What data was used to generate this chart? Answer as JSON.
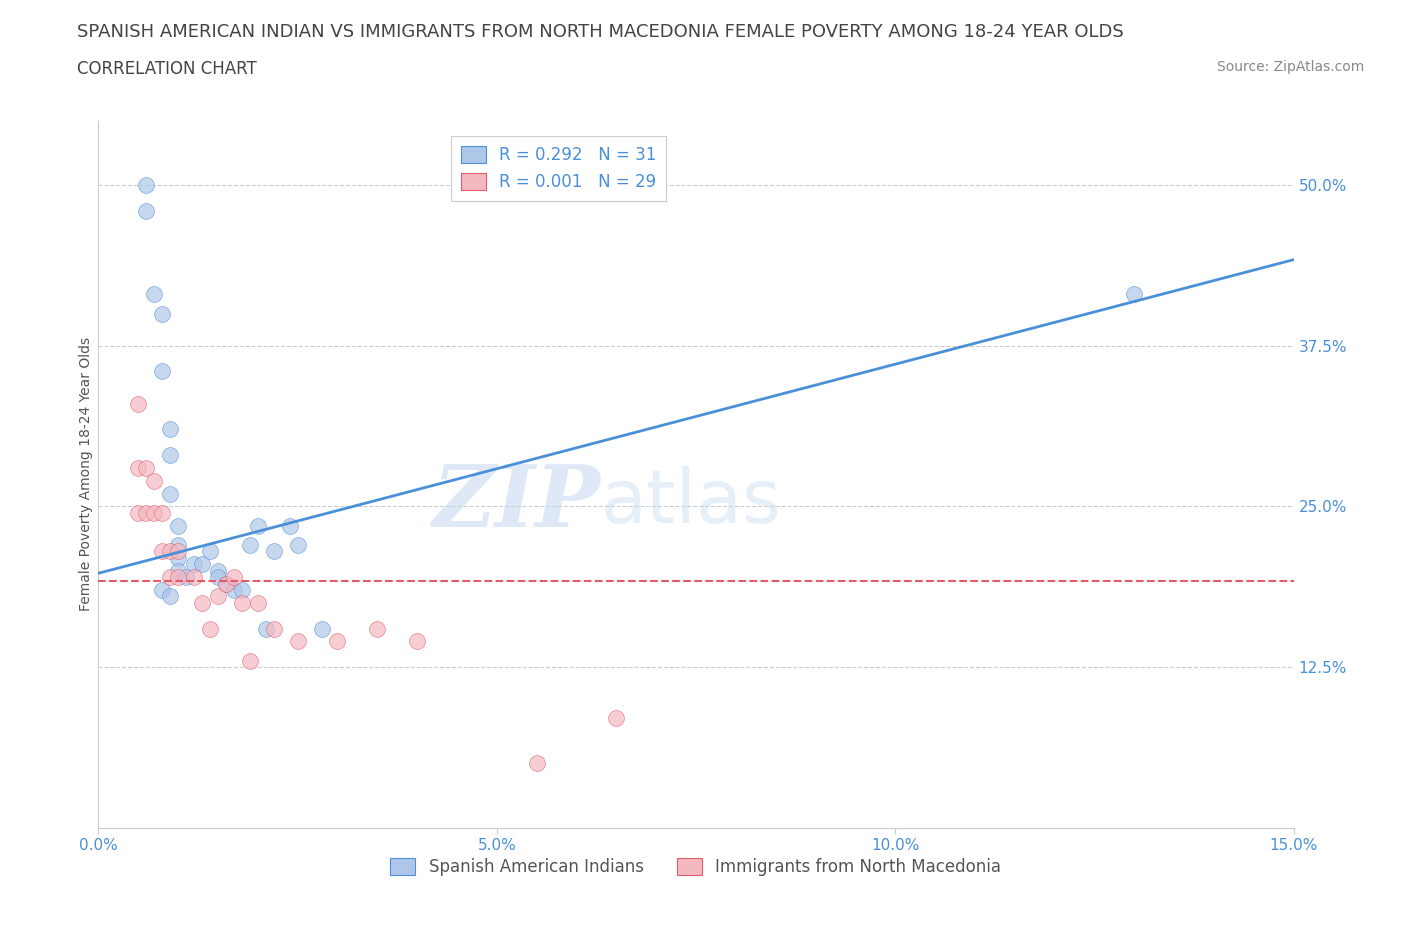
{
  "title_line1": "SPANISH AMERICAN INDIAN VS IMMIGRANTS FROM NORTH MACEDONIA FEMALE POVERTY AMONG 18-24 YEAR OLDS",
  "title_line2": "CORRELATION CHART",
  "source": "Source: ZipAtlas.com",
  "ylabel": "Female Poverty Among 18-24 Year Olds",
  "xlim": [
    0.0,
    0.15
  ],
  "ylim": [
    0.0,
    0.55
  ],
  "xticks": [
    0.0,
    0.05,
    0.1,
    0.15
  ],
  "xtick_labels": [
    "0.0%",
    "5.0%",
    "10.0%",
    "15.0%"
  ],
  "ytick_labels": [
    "12.5%",
    "25.0%",
    "37.5%",
    "50.0%"
  ],
  "ytick_values": [
    0.125,
    0.25,
    0.375,
    0.5
  ],
  "blue_R": 0.292,
  "blue_N": 31,
  "pink_R": 0.001,
  "pink_N": 29,
  "blue_color": "#aec6e8",
  "pink_color": "#f4b8c1",
  "blue_line_color": "#4a90d9",
  "pink_line_color": "#e05a6a",
  "grid_color": "#cccccc",
  "blue_line_x": [
    0.0,
    0.15
  ],
  "blue_line_y": [
    0.198,
    0.442
  ],
  "pink_line_x": [
    0.0,
    0.15
  ],
  "pink_line_y": [
    0.192,
    0.192
  ],
  "blue_scatter_x": [
    0.006,
    0.006,
    0.007,
    0.008,
    0.008,
    0.009,
    0.009,
    0.009,
    0.01,
    0.01,
    0.01,
    0.01,
    0.011,
    0.012,
    0.013,
    0.014,
    0.015,
    0.015,
    0.016,
    0.017,
    0.018,
    0.019,
    0.02,
    0.021,
    0.022,
    0.024,
    0.025,
    0.028,
    0.008,
    0.009,
    0.13
  ],
  "blue_scatter_y": [
    0.5,
    0.48,
    0.415,
    0.4,
    0.355,
    0.31,
    0.29,
    0.26,
    0.235,
    0.22,
    0.21,
    0.2,
    0.195,
    0.205,
    0.205,
    0.215,
    0.2,
    0.195,
    0.19,
    0.185,
    0.185,
    0.22,
    0.235,
    0.155,
    0.215,
    0.235,
    0.22,
    0.155,
    0.185,
    0.18,
    0.415
  ],
  "pink_scatter_x": [
    0.005,
    0.005,
    0.005,
    0.006,
    0.006,
    0.007,
    0.007,
    0.008,
    0.008,
    0.009,
    0.009,
    0.01,
    0.01,
    0.012,
    0.013,
    0.014,
    0.015,
    0.016,
    0.017,
    0.018,
    0.019,
    0.02,
    0.022,
    0.025,
    0.03,
    0.035,
    0.04,
    0.055,
    0.065
  ],
  "pink_scatter_y": [
    0.33,
    0.28,
    0.245,
    0.28,
    0.245,
    0.27,
    0.245,
    0.245,
    0.215,
    0.215,
    0.195,
    0.215,
    0.195,
    0.195,
    0.175,
    0.155,
    0.18,
    0.19,
    0.195,
    0.175,
    0.13,
    0.175,
    0.155,
    0.145,
    0.145,
    0.155,
    0.145,
    0.05,
    0.085
  ],
  "legend_label_blue": "Spanish American Indians",
  "legend_label_pink": "Immigrants from North Macedonia",
  "title_fontsize": 13,
  "subtitle_fontsize": 12,
  "axis_label_fontsize": 10,
  "tick_fontsize": 11,
  "legend_fontsize": 12,
  "source_fontsize": 10,
  "marker_size": 130
}
